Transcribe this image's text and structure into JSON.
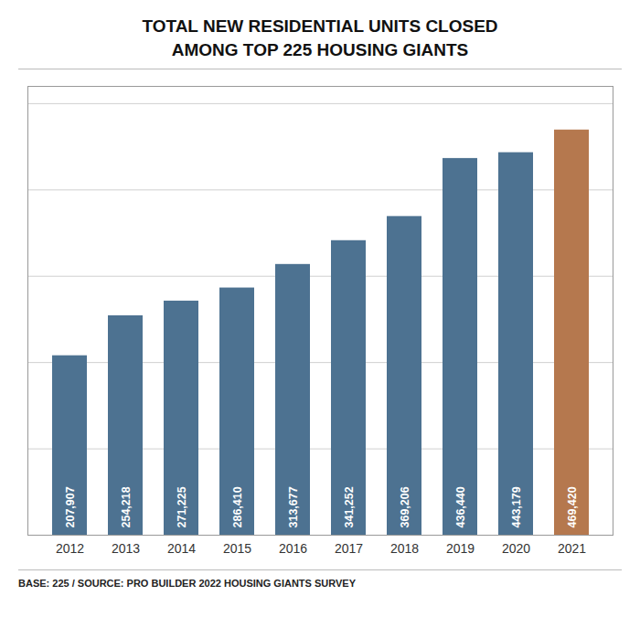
{
  "chart_data": {
    "type": "bar",
    "title": "TOTAL NEW RESIDENTIAL UNITS CLOSED\nAMONG TOP 225 HOUSING GIANTS",
    "caption": "BASE: 225 / SOURCE: PRO BUILDER 2022 HOUSING GIANTS SURVEY",
    "categories": [
      "2012",
      "2013",
      "2014",
      "2015",
      "2016",
      "2017",
      "2018",
      "2019",
      "2020",
      "2021"
    ],
    "values": [
      207907,
      254218,
      271225,
      286410,
      313677,
      341252,
      369206,
      436440,
      443179,
      469420
    ],
    "value_labels": [
      "207,907",
      "254,218",
      "271,225",
      "286,410",
      "313,677",
      "341,252",
      "369,206",
      "436,440",
      "443,179",
      "469,420"
    ],
    "colors": [
      "#4d7291",
      "#4d7291",
      "#4d7291",
      "#4d7291",
      "#4d7291",
      "#4d7291",
      "#4d7291",
      "#4d7291",
      "#4d7291",
      "#b5784e"
    ],
    "ylim": [
      0,
      520000
    ],
    "yticks": [
      0,
      100000,
      200000,
      300000,
      400000,
      500000
    ],
    "grid": true,
    "tick_labels": "x",
    "data_labels": true
  }
}
